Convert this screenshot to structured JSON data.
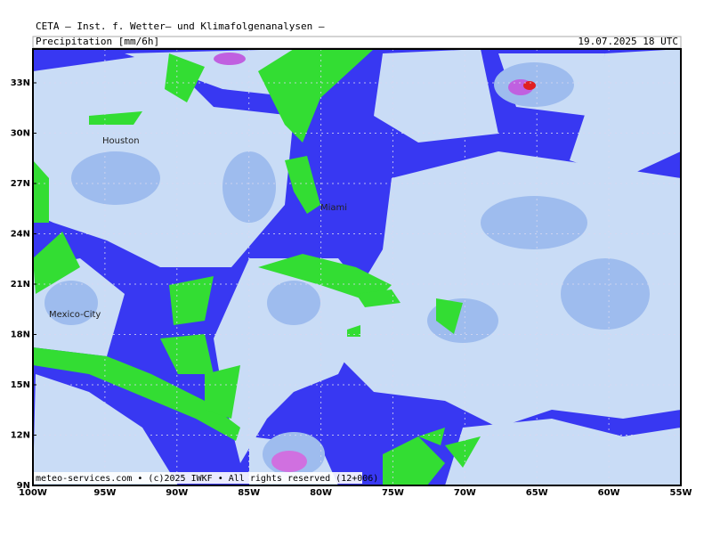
{
  "header": {
    "title": "CETA — Inst. f. Wetter— und Klimafolgenanalysen —",
    "field": "Precipitation [mm/6h]",
    "valid_time": "19.07.2025 18 UTC"
  },
  "map": {
    "lat_labels": [
      "33N",
      "30N",
      "27N",
      "24N",
      "21N",
      "18N",
      "15N",
      "12N",
      "9N"
    ],
    "lon_labels": [
      "100W",
      "95W",
      "90W",
      "85W",
      "80W",
      "75W",
      "70W",
      "65W",
      "60W",
      "55W"
    ],
    "cities": [
      "Houston",
      "Miami",
      "Mexico-City"
    ],
    "credit": "meteo-services.com • (c)2025 IWKF • All rights reserved (12+006)"
  }
}
